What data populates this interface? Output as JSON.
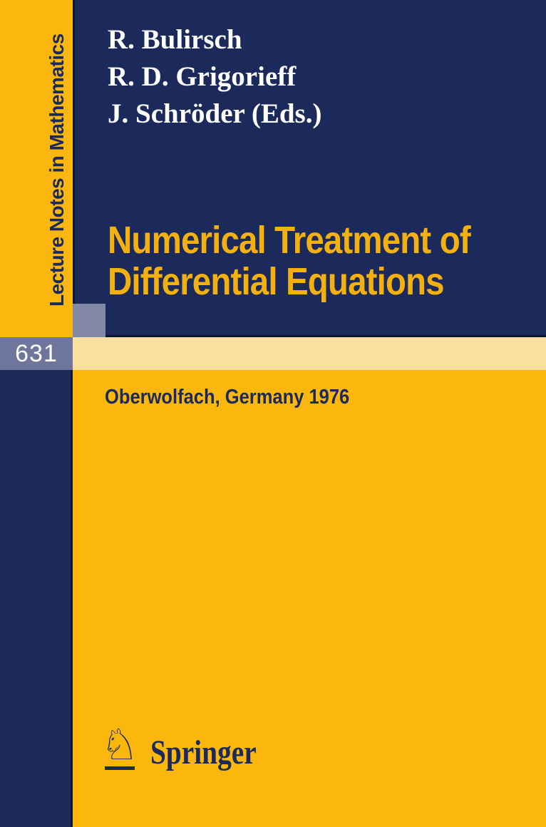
{
  "cover": {
    "series_title": "Lecture Notes in Mathematics",
    "volume_number": "631",
    "editors": [
      "R. Bulirsch",
      "R. D. Grigorieff",
      "J. Schröder (Eds.)"
    ],
    "title_line1": "Numerical Treatment of",
    "title_line2": "Differential Equations",
    "subtitle": "Oberwolfach, Germany 1976",
    "publisher": {
      "name": "Springer",
      "logo_icon": "springer-knight-icon",
      "knight_glyph": "♘"
    },
    "colors": {
      "yellow": "#FBB70D",
      "navy": "#1B2A5A",
      "navy-edge": "#0D1530",
      "slate": "#6F769B",
      "slate-light": "#8289A8",
      "cream": "#FBDFA0",
      "title-yellow": "#F2B111",
      "white": "#FFFFFF"
    }
  }
}
